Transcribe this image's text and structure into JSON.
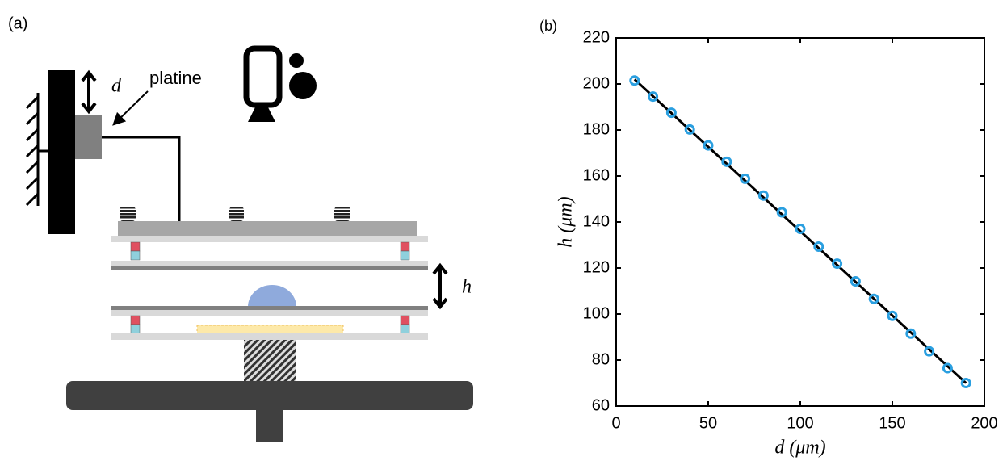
{
  "panel_labels": [
    "(a)",
    "(b)"
  ],
  "diagram": {
    "d_label": "d",
    "platine_label": "platine",
    "h_label": "h"
  },
  "chart_data": {
    "type": "scatter",
    "xlabel": "d (μm)",
    "ylabel": "h (μm)",
    "x": [
      10,
      20,
      30,
      40,
      50,
      60,
      70,
      80,
      90,
      100,
      110,
      120,
      130,
      140,
      150,
      160,
      170,
      180,
      190
    ],
    "values": [
      201.5,
      194.5,
      187.5,
      180.2,
      173.3,
      166.2,
      158.8,
      151.5,
      144.2,
      137.0,
      129.3,
      121.9,
      114.2,
      106.6,
      99.2,
      91.5,
      83.8,
      76.5,
      70.0
    ],
    "color": "#2a9fe0",
    "fit": {
      "x": [
        10,
        190
      ],
      "values": [
        202,
        70
      ],
      "color": "#000000"
    },
    "xlim": [
      0,
      200
    ],
    "xticks": [
      0,
      50,
      100,
      150,
      200
    ],
    "ylim": [
      60,
      220
    ],
    "yticks": [
      60,
      80,
      100,
      120,
      140,
      160,
      180,
      200,
      220
    ]
  }
}
